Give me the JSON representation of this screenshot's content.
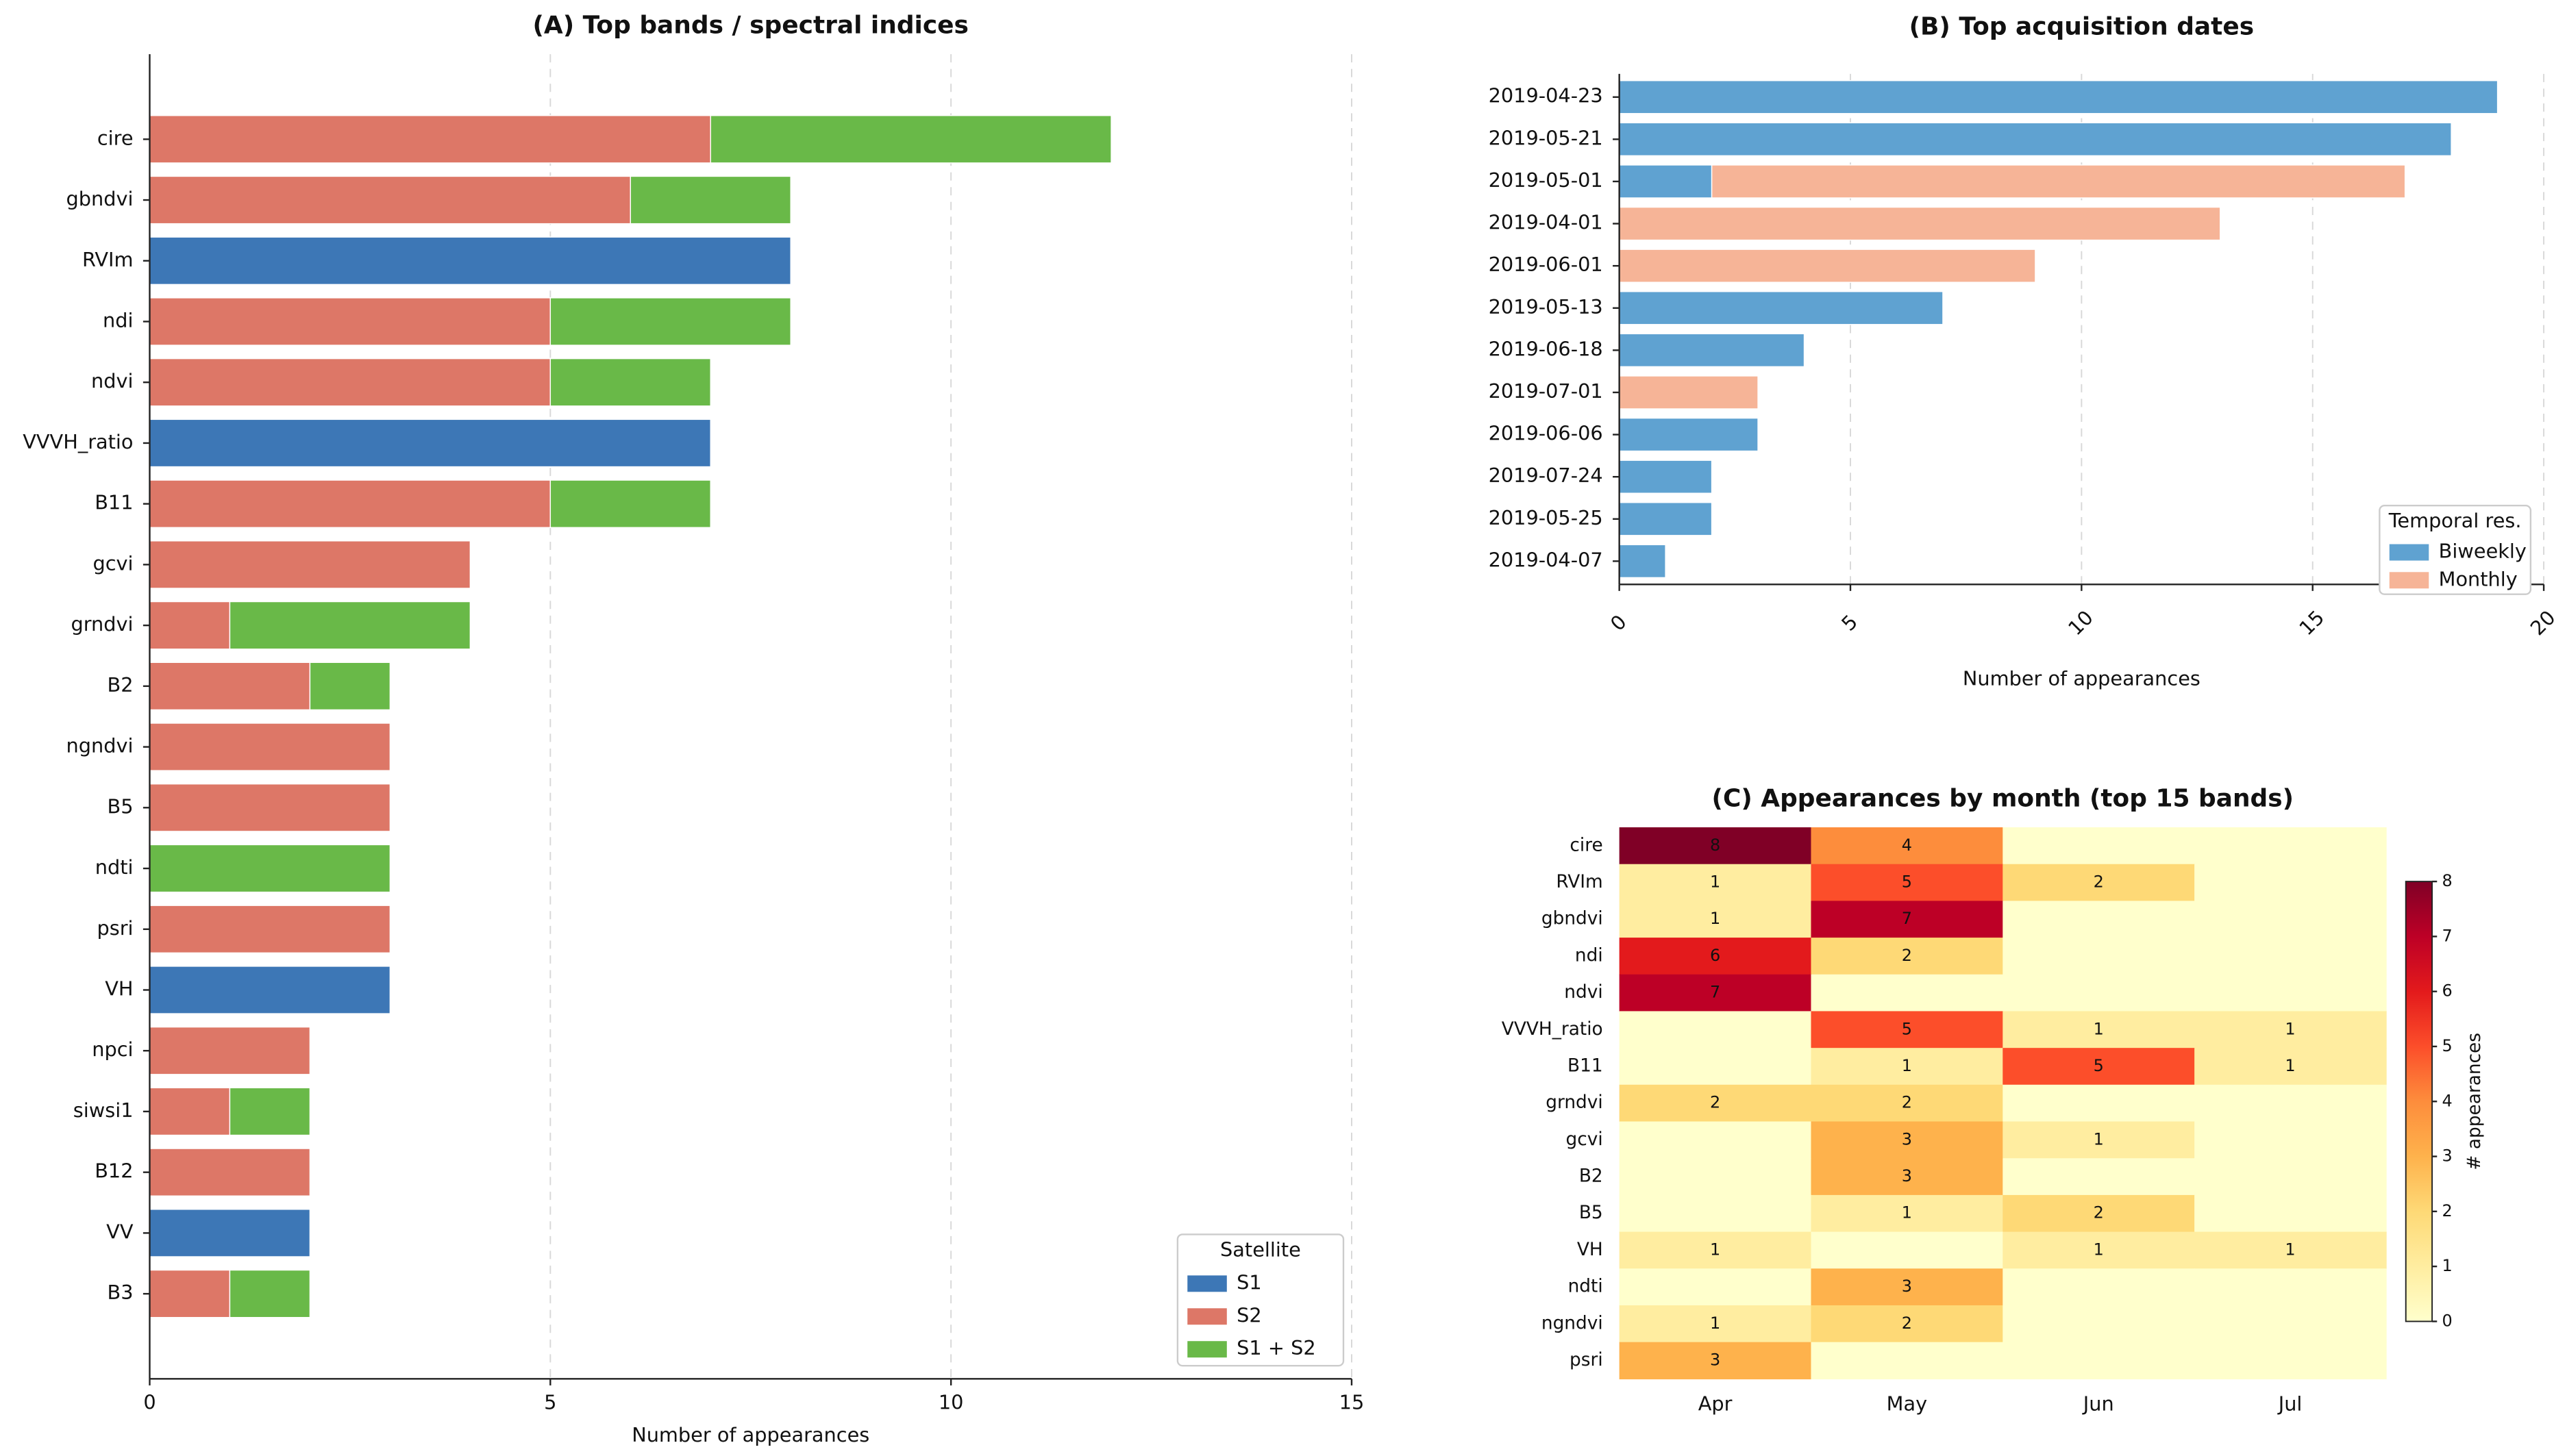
{
  "chart_data": [
    {
      "type": "bar",
      "orientation": "horizontal",
      "stacked": true,
      "title": "(A)  Top bands / spectral indices",
      "x_label": "Number of appearances",
      "categories": [
        "cire",
        "gbndvi",
        "RVIm",
        "ndi",
        "ndvi",
        "VVVH_ratio",
        "B11",
        "gcvi",
        "grndvi",
        "B2",
        "ngndvi",
        "B5",
        "ndti",
        "psri",
        "VH",
        "npci",
        "siwsi1",
        "B12",
        "VV",
        "B3"
      ],
      "series": [
        {
          "name": "S1",
          "color": "#3d77b6",
          "values": [
            0,
            0,
            8,
            0,
            0,
            7,
            0,
            0,
            0,
            0,
            0,
            0,
            0,
            0,
            3,
            0,
            0,
            0,
            2,
            0
          ]
        },
        {
          "name": "S2",
          "color": "#dd7767",
          "values": [
            7,
            6,
            0,
            5,
            5,
            0,
            5,
            4,
            1,
            2,
            3,
            3,
            0,
            3,
            0,
            2,
            1,
            2,
            0,
            1
          ]
        },
        {
          "name": "S1 + S2",
          "color": "#69b948",
          "values": [
            5,
            2,
            0,
            3,
            2,
            0,
            2,
            0,
            3,
            1,
            0,
            0,
            3,
            0,
            0,
            0,
            1,
            0,
            0,
            1
          ]
        }
      ],
      "xlim": [
        0,
        15
      ],
      "xticks": [
        0,
        5,
        10,
        15
      ],
      "grid": true,
      "legend_title": "Satellite",
      "legend_position": "lower right"
    },
    {
      "type": "bar",
      "orientation": "horizontal",
      "stacked": true,
      "title": "(B)  Top acquisition dates",
      "x_label": "Number of appearances",
      "categories": [
        "2019-04-23",
        "2019-05-21",
        "2019-05-01",
        "2019-04-01",
        "2019-06-01",
        "2019-05-13",
        "2019-06-18",
        "2019-07-01",
        "2019-06-06",
        "2019-07-24",
        "2019-05-25",
        "2019-04-07"
      ],
      "series": [
        {
          "name": "Biweekly",
          "color": "#5fa2d1",
          "values": [
            19,
            18,
            2,
            0,
            0,
            7,
            4,
            0,
            3,
            2,
            2,
            1
          ]
        },
        {
          "name": "Monthly",
          "color": "#f6b497",
          "values": [
            0,
            0,
            15,
            13,
            9,
            0,
            0,
            3,
            0,
            0,
            0,
            0
          ]
        }
      ],
      "xlim": [
        0,
        20
      ],
      "xticks": [
        0,
        5,
        10,
        15,
        20
      ],
      "grid": true,
      "legend_title": "Temporal res.",
      "legend_position": "lower right"
    },
    {
      "type": "heatmap",
      "title": "(C)  Appearances by month (top 15 bands)",
      "x_categories": [
        "Apr",
        "May",
        "Jun",
        "Jul"
      ],
      "y_categories": [
        "cire",
        "RVIm",
        "gbndvi",
        "ndi",
        "ndvi",
        "VVVH_ratio",
        "B11",
        "grndvi",
        "gcvi",
        "B2",
        "B5",
        "VH",
        "ndti",
        "ngndvi",
        "psri"
      ],
      "values": [
        [
          8,
          4,
          0,
          0
        ],
        [
          1,
          5,
          2,
          0
        ],
        [
          1,
          7,
          0,
          0
        ],
        [
          6,
          2,
          0,
          0
        ],
        [
          7,
          0,
          0,
          0
        ],
        [
          0,
          5,
          1,
          1
        ],
        [
          0,
          1,
          5,
          1
        ],
        [
          2,
          2,
          0,
          0
        ],
        [
          0,
          3,
          1,
          0
        ],
        [
          0,
          3,
          0,
          0
        ],
        [
          0,
          1,
          2,
          0
        ],
        [
          1,
          0,
          1,
          1
        ],
        [
          0,
          3,
          0,
          0
        ],
        [
          1,
          2,
          0,
          0
        ],
        [
          3,
          0,
          0,
          0
        ]
      ],
      "colormap": "YlOrRd",
      "zlim": [
        0,
        8
      ],
      "zticks": [
        0,
        1,
        2,
        3,
        4,
        5,
        6,
        7,
        8
      ],
      "colorbar_label": "# appearances"
    }
  ]
}
